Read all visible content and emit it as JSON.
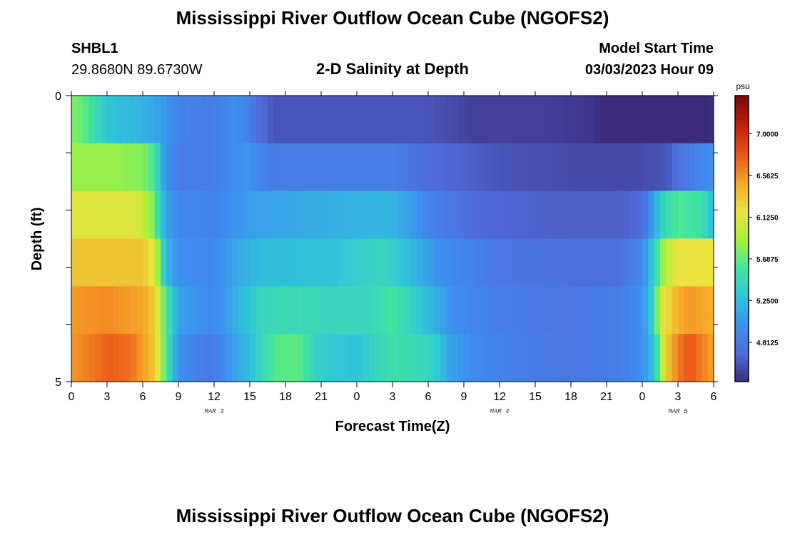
{
  "header": {
    "title": "Mississippi River Outflow Ocean Cube (NGOFS2)",
    "station": "SHBL1",
    "coords": "29.8680N  89.6730W",
    "subtitle": "2-D Salinity at Depth",
    "model_start_label": "Model Start Time",
    "model_start_value": "03/03/2023 Hour 09"
  },
  "footer": {
    "title": "Mississippi River Outflow Ocean Cube (NGOFS2)"
  },
  "colors": {
    "colormap": [
      "#3b2a7a",
      "#4f6bd8",
      "#3d8ff0",
      "#2fc6d9",
      "#3fe6a0",
      "#a6f23a",
      "#e9e23f",
      "#f5a628",
      "#e9521a",
      "#c21e0c",
      "#7a0808"
    ]
  },
  "chart_data": {
    "type": "heatmap",
    "xlabel": "Forecast Time(Z)",
    "ylabel": "Depth (ft)",
    "x_ticks": [
      "0",
      "3",
      "6",
      "9",
      "12",
      "15",
      "18",
      "21",
      "0",
      "3",
      "6",
      "9",
      "12",
      "15",
      "18",
      "21",
      "0",
      "3",
      "6"
    ],
    "x_range_hours": [
      0,
      54
    ],
    "date_labels": [
      {
        "text": "MAR 3",
        "hour": 12
      },
      {
        "text": "MAR 4",
        "hour": 36
      },
      {
        "text": "MAR 5",
        "hour": 51
      }
    ],
    "y_ticks": [
      "0",
      "5"
    ],
    "y_range": [
      0,
      5
    ],
    "colorbar": {
      "unit": "psu",
      "ticks": [
        "7.0000",
        "6.5625",
        "6.1250",
        "5.6875",
        "5.2500",
        "4.8125"
      ],
      "tick_values": [
        7.0,
        6.5625,
        6.125,
        5.6875,
        5.25,
        4.8125
      ],
      "range": [
        4.4,
        7.4
      ]
    },
    "rows": [
      {
        "depth": 0,
        "keys": [
          [
            0,
            5.8
          ],
          [
            1,
            5.7
          ],
          [
            3,
            5.3
          ],
          [
            6,
            5.2
          ],
          [
            8,
            5.05
          ],
          [
            9,
            4.9
          ],
          [
            12,
            4.85
          ],
          [
            14,
            5.0
          ],
          [
            16,
            4.7
          ],
          [
            17,
            4.6
          ],
          [
            24,
            4.6
          ],
          [
            27,
            4.6
          ],
          [
            30,
            4.6
          ],
          [
            34,
            4.5
          ],
          [
            40,
            4.5
          ],
          [
            44,
            4.45
          ],
          [
            45,
            4.35
          ],
          [
            49,
            4.3
          ],
          [
            50,
            4.2
          ],
          [
            52,
            4.15
          ],
          [
            53,
            4.3
          ],
          [
            54,
            4.45
          ]
        ]
      },
      {
        "depth": 1,
        "keys": [
          [
            0,
            5.85
          ],
          [
            4,
            5.85
          ],
          [
            6,
            5.8
          ],
          [
            7,
            5.6
          ],
          [
            7.6,
            5.2
          ],
          [
            8,
            5.0
          ],
          [
            9,
            4.85
          ],
          [
            12,
            4.85
          ],
          [
            14,
            5.0
          ],
          [
            15,
            5.05
          ],
          [
            16,
            4.9
          ],
          [
            17,
            4.85
          ],
          [
            27,
            4.85
          ],
          [
            30,
            4.72
          ],
          [
            36,
            4.6
          ],
          [
            42,
            4.55
          ],
          [
            48,
            4.55
          ],
          [
            50,
            4.6
          ],
          [
            51,
            4.75
          ],
          [
            53,
            4.95
          ],
          [
            54,
            5.0
          ]
        ]
      },
      {
        "depth": 2,
        "keys": [
          [
            0,
            6.15
          ],
          [
            5,
            6.15
          ],
          [
            6,
            6.05
          ],
          [
            7,
            5.75
          ],
          [
            7.5,
            5.35
          ],
          [
            8,
            5.1
          ],
          [
            9,
            4.95
          ],
          [
            12,
            4.9
          ],
          [
            14,
            5.05
          ],
          [
            16,
            5.1
          ],
          [
            20,
            5.15
          ],
          [
            24,
            5.2
          ],
          [
            27,
            5.2
          ],
          [
            29,
            5.05
          ],
          [
            30,
            4.9
          ],
          [
            34,
            4.7
          ],
          [
            40,
            4.65
          ],
          [
            46,
            4.65
          ],
          [
            48,
            4.7
          ],
          [
            49,
            5.15
          ],
          [
            50,
            5.5
          ],
          [
            51,
            5.65
          ],
          [
            53,
            5.55
          ],
          [
            54,
            5.2
          ]
        ]
      },
      {
        "depth": 3,
        "keys": [
          [
            0,
            6.35
          ],
          [
            6,
            6.35
          ],
          [
            7,
            6.15
          ],
          [
            7.6,
            5.5
          ],
          [
            8,
            5.2
          ],
          [
            9,
            5.0
          ],
          [
            12,
            4.95
          ],
          [
            14,
            5.15
          ],
          [
            16,
            5.25
          ],
          [
            22,
            5.3
          ],
          [
            26,
            5.45
          ],
          [
            28,
            5.3
          ],
          [
            31,
            5.0
          ],
          [
            36,
            4.8
          ],
          [
            42,
            4.75
          ],
          [
            46,
            4.75
          ],
          [
            48,
            4.95
          ],
          [
            49,
            5.4
          ],
          [
            50,
            6.0
          ],
          [
            51,
            6.2
          ],
          [
            54,
            6.2
          ]
        ]
      },
      {
        "depth": 4,
        "keys": [
          [
            0,
            6.55
          ],
          [
            3,
            6.6
          ],
          [
            6,
            6.5
          ],
          [
            7,
            6.3
          ],
          [
            8,
            5.6
          ],
          [
            9,
            5.1
          ],
          [
            12,
            4.95
          ],
          [
            14,
            5.2
          ],
          [
            16,
            5.45
          ],
          [
            18,
            5.5
          ],
          [
            22,
            5.45
          ],
          [
            25,
            5.45
          ],
          [
            27,
            5.6
          ],
          [
            30,
            5.25
          ],
          [
            32,
            5.0
          ],
          [
            36,
            4.85
          ],
          [
            42,
            4.8
          ],
          [
            46,
            4.85
          ],
          [
            48,
            5.0
          ],
          [
            49,
            5.45
          ],
          [
            49.5,
            6.1
          ],
          [
            51,
            6.45
          ],
          [
            52,
            6.55
          ],
          [
            54,
            6.45
          ]
        ]
      },
      {
        "depth": 5,
        "keys": [
          [
            0,
            6.55
          ],
          [
            3,
            6.75
          ],
          [
            5,
            6.7
          ],
          [
            7,
            6.35
          ],
          [
            8,
            5.6
          ],
          [
            9,
            5.0
          ],
          [
            11,
            4.85
          ],
          [
            12,
            4.85
          ],
          [
            13,
            5.0
          ],
          [
            15,
            5.25
          ],
          [
            17,
            5.65
          ],
          [
            19,
            5.7
          ],
          [
            21,
            5.35
          ],
          [
            24,
            5.3
          ],
          [
            27,
            5.55
          ],
          [
            30,
            5.45
          ],
          [
            32,
            5.1
          ],
          [
            34,
            4.95
          ],
          [
            38,
            4.85
          ],
          [
            42,
            4.8
          ],
          [
            46,
            4.85
          ],
          [
            48,
            5.0
          ],
          [
            49,
            5.3
          ],
          [
            50,
            6.3
          ],
          [
            51,
            6.65
          ],
          [
            52,
            6.8
          ],
          [
            54,
            6.5
          ]
        ]
      }
    ]
  }
}
